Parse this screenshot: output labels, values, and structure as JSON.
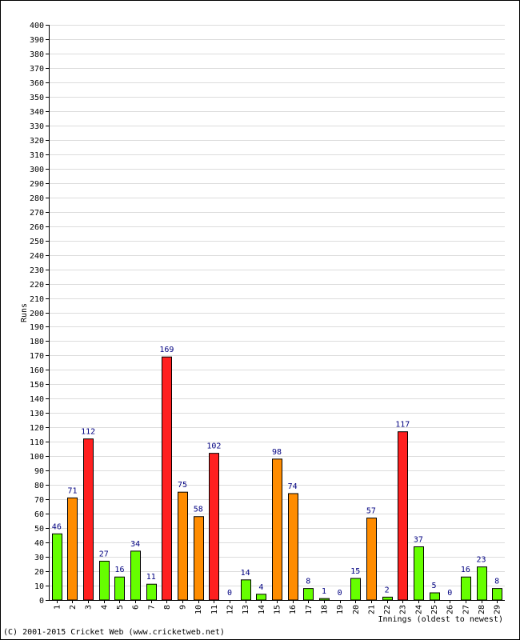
{
  "chart_data": {
    "type": "bar",
    "xlabel": "Innings (oldest to newest)",
    "ylabel": "Runs",
    "ylim": [
      0,
      400
    ],
    "ytick_step": 10,
    "grid": true,
    "categories": [
      "1",
      "2",
      "3",
      "4",
      "5",
      "6",
      "7",
      "8",
      "9",
      "10",
      "11",
      "12",
      "13",
      "14",
      "15",
      "16",
      "17",
      "18",
      "19",
      "20",
      "21",
      "22",
      "23",
      "24",
      "25",
      "26",
      "27",
      "28",
      "29"
    ],
    "values": [
      46,
      71,
      112,
      27,
      16,
      34,
      11,
      169,
      75,
      58,
      102,
      0,
      14,
      4,
      98,
      74,
      8,
      1,
      0,
      15,
      57,
      2,
      117,
      37,
      5,
      0,
      16,
      23,
      8
    ],
    "bar_colors": [
      "#66ff00",
      "#ff8c00",
      "#ff2020",
      "#66ff00",
      "#66ff00",
      "#66ff00",
      "#66ff00",
      "#ff2020",
      "#ff8c00",
      "#ff8c00",
      "#ff2020",
      "#66ff00",
      "#66ff00",
      "#66ff00",
      "#ff8c00",
      "#ff8c00",
      "#66ff00",
      "#66ff00",
      "#66ff00",
      "#66ff00",
      "#ff8c00",
      "#66ff00",
      "#ff2020",
      "#66ff00",
      "#66ff00",
      "#66ff00",
      "#66ff00",
      "#66ff00",
      "#66ff00"
    ]
  },
  "footer": {
    "credit": "(C) 2001-2015 Cricket Web (www.cricketweb.net)"
  }
}
